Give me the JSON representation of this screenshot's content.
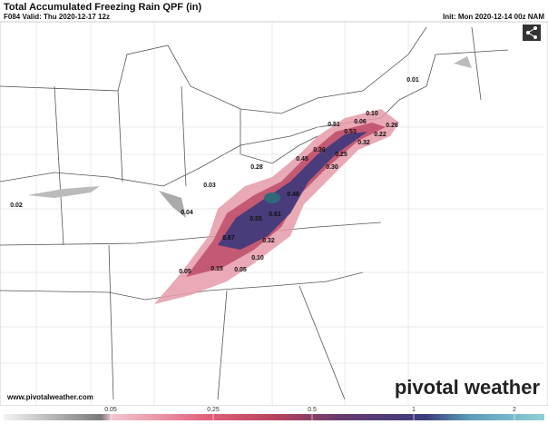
{
  "header": {
    "title": "Total Accumulated Freezing Rain QPF (in)",
    "valid": "F084 Valid: Thu 2020-12-17 12z",
    "init": "Init: Mon 2020-12-14 00z NAM"
  },
  "map_labels": [
    "0.01",
    "0.10",
    "0.51",
    "0.06",
    "0.26",
    "0.53",
    "0.22",
    "0.36",
    "0.32",
    "0.45",
    "0.25",
    "0.30",
    "0.28",
    "0.03",
    "0.48",
    "0.02",
    "0.04",
    "0.61",
    "0.55",
    "0.67",
    "0.32",
    "0.10",
    "0.05",
    "0.15",
    "0.05"
  ],
  "footer": {
    "website": "www.pivotalweather.com",
    "logo": "pivotal weather"
  },
  "colorbar": {
    "ticks": [
      "0.05",
      "0.25",
      "0.5",
      "1",
      "2"
    ]
  }
}
